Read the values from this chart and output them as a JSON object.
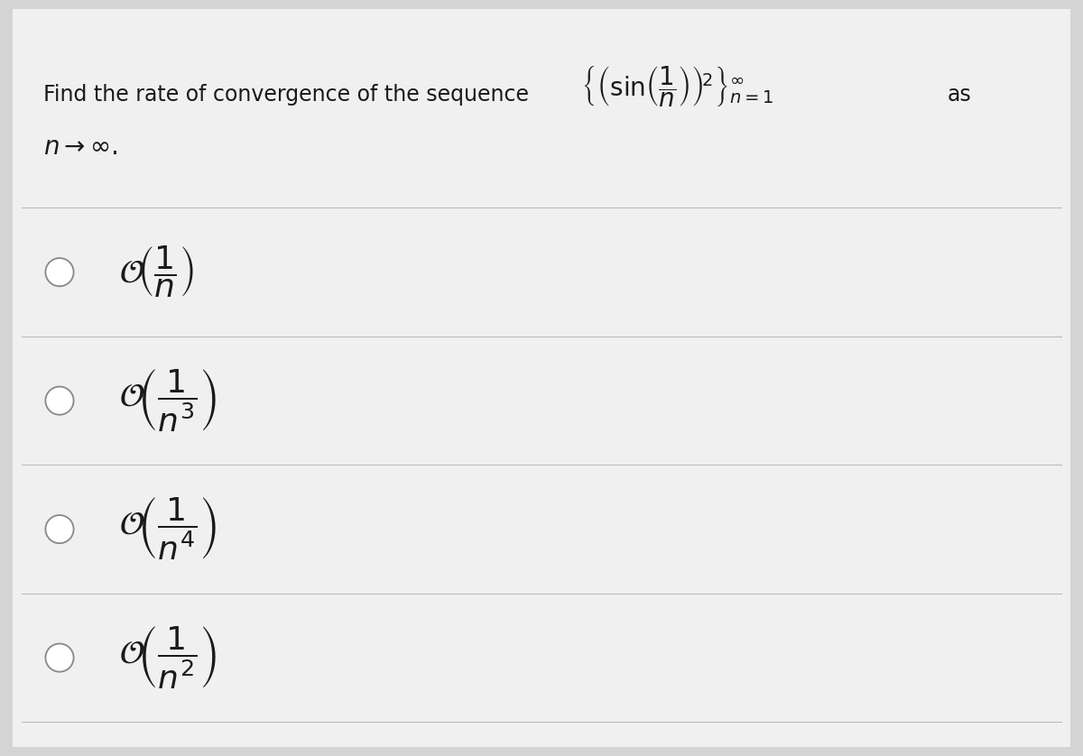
{
  "background_color": "#d4d4d4",
  "card_color": "#f0f0f0",
  "text_color": "#1a1a1a",
  "divider_color": "#bbbbbb",
  "circle_color": "#888888",
  "title_text": "Find the rate of convergence of the sequence",
  "as_text": "as",
  "limit_latex": "$n \\rightarrow \\infty.$",
  "sequence_latex": "$\\left\\{\\left(\\sin\\!\\left(\\dfrac{1}{n}\\right)\\right)^{\\!2}\\right\\}_{n=1}^{\\infty}$",
  "options": [
    "$\\mathcal{O}\\!\\left(\\dfrac{1}{n}\\right)$",
    "$\\mathcal{O}\\!\\left(\\dfrac{1}{n^3}\\right)$",
    "$\\mathcal{O}\\!\\left(\\dfrac{1}{n^4}\\right)$",
    "$\\mathcal{O}\\!\\left(\\dfrac{1}{n^2}\\right)$"
  ],
  "figsize": [
    12.0,
    8.38
  ],
  "dpi": 100,
  "title_fontsize": 17,
  "option_fontsize": 26,
  "limit_fontsize": 20,
  "seq_fontsize": 20,
  "as_fontsize": 17
}
